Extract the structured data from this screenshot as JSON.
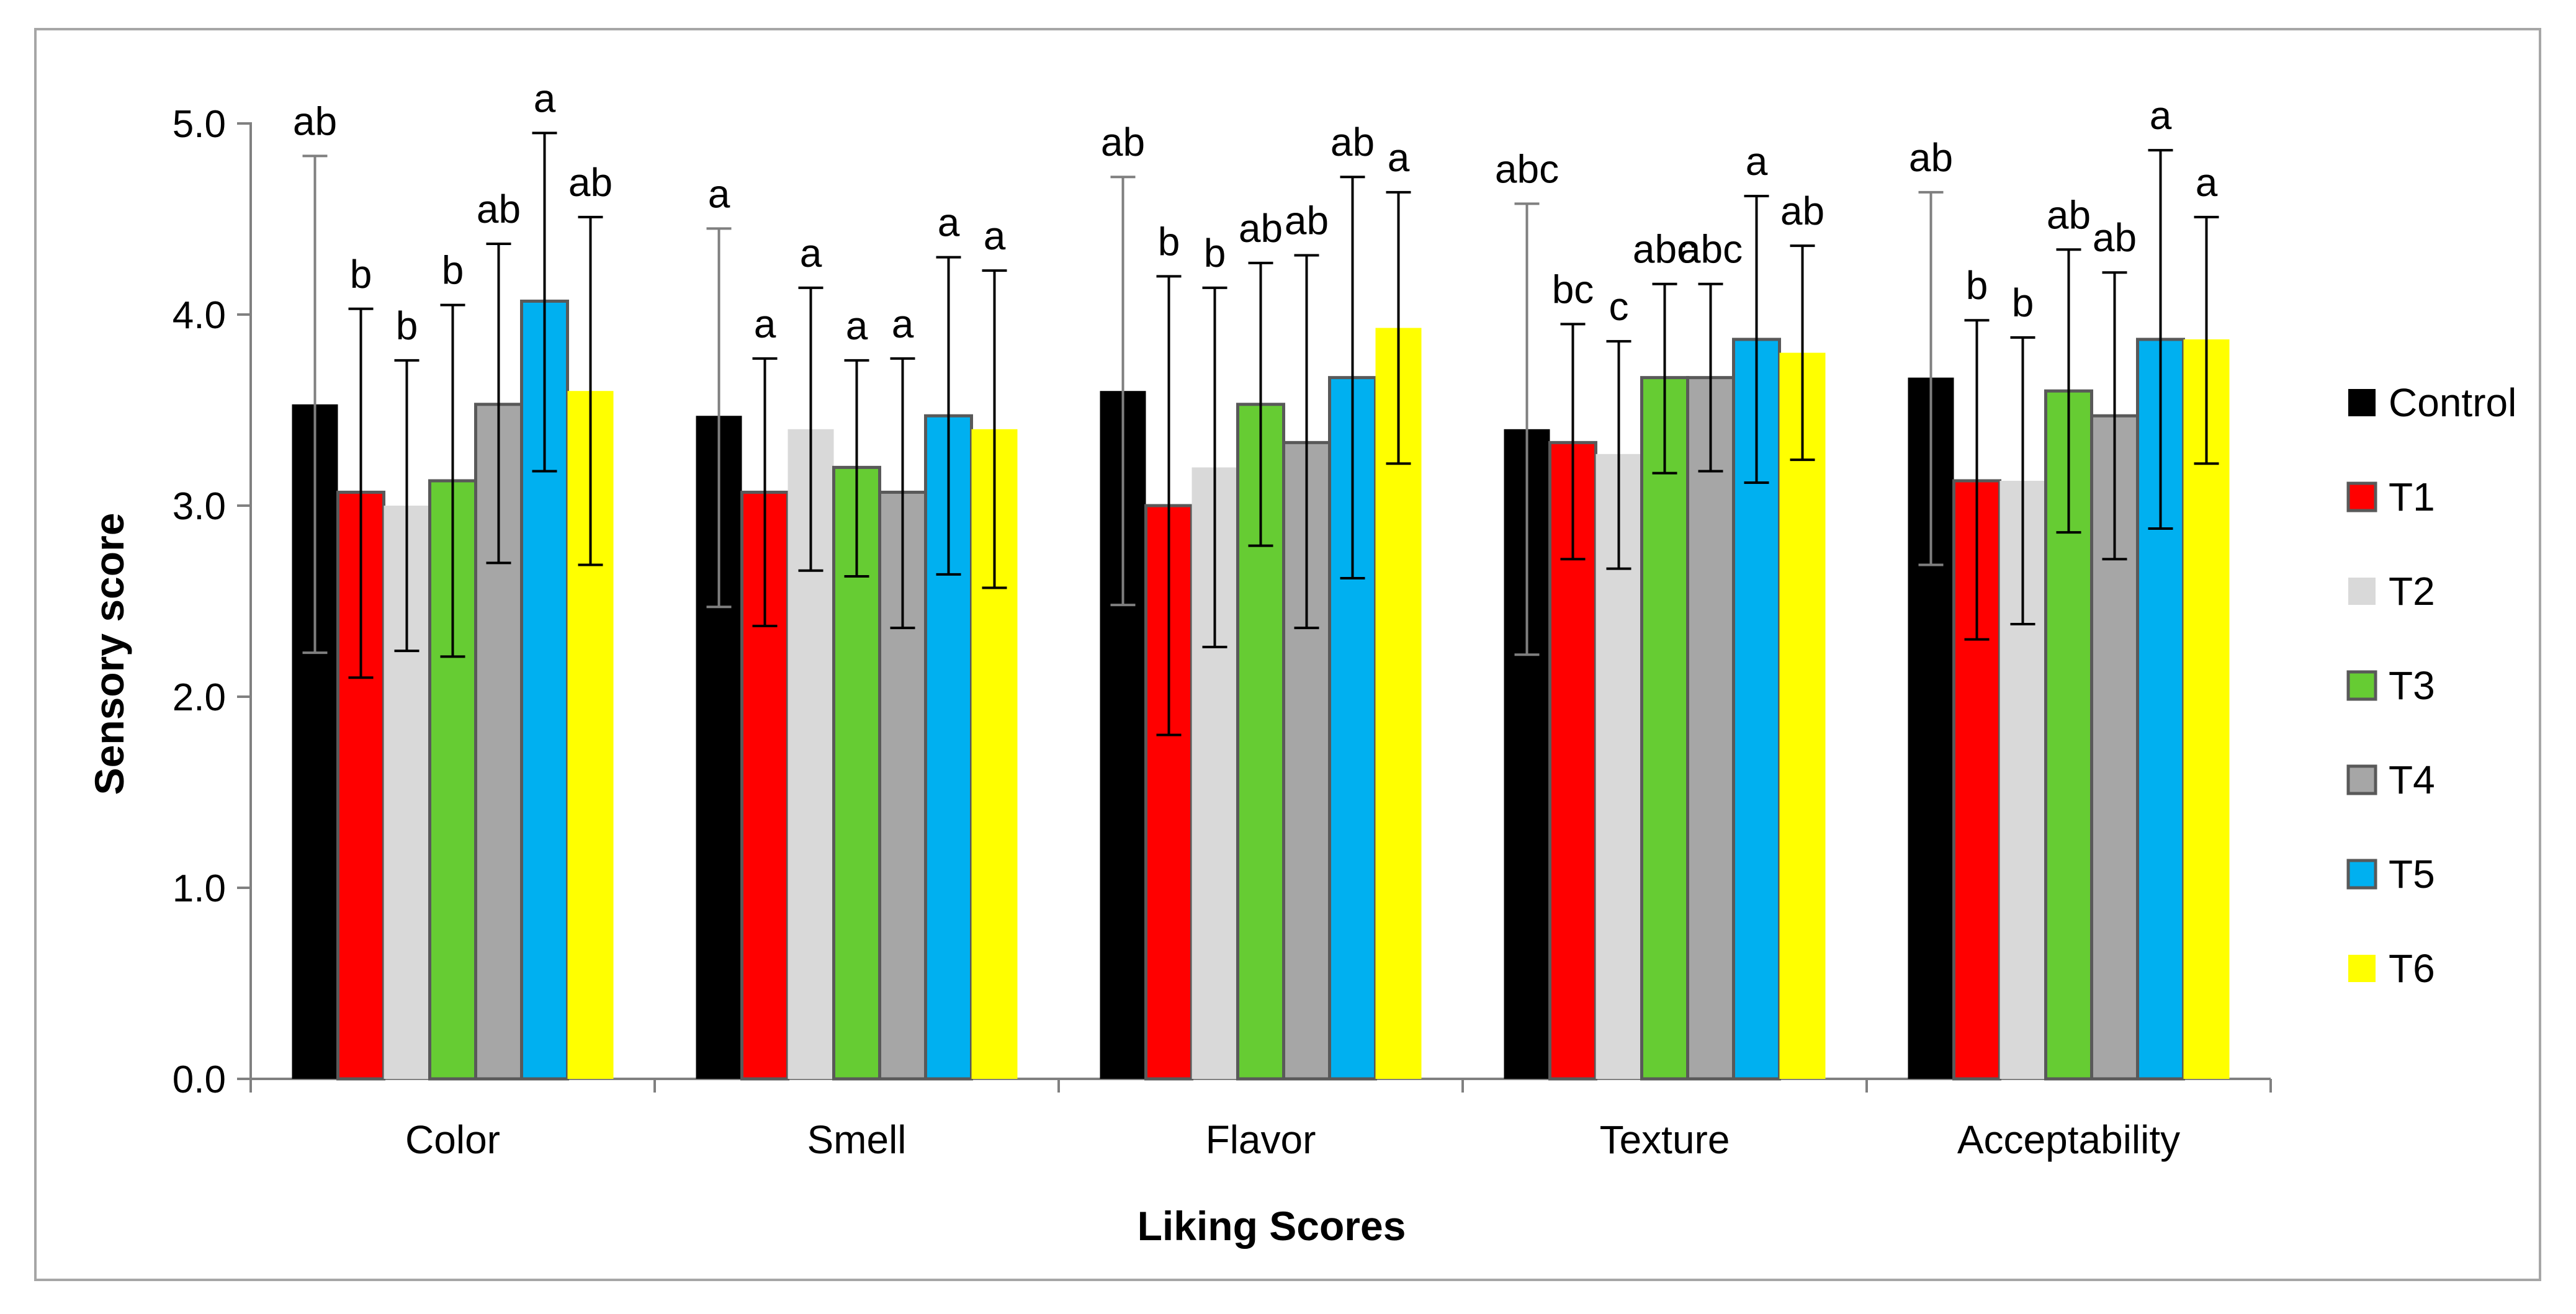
{
  "chart_data": {
    "type": "bar",
    "title": "",
    "xlabel": "Liking Scores",
    "ylabel": "Sensory score",
    "ylim": [
      0,
      5
    ],
    "yticks": [
      "0.0",
      "1.0",
      "2.0",
      "3.0",
      "4.0",
      "5.0"
    ],
    "grid": false,
    "legend_position": "right",
    "categories": [
      "Color",
      "Smell",
      "Flavor",
      "Texture",
      "Acceptability"
    ],
    "series": [
      {
        "name": "Control",
        "color": "#000000",
        "values": [
          3.53,
          3.47,
          3.6,
          3.4,
          3.67
        ],
        "err_low": [
          2.23,
          2.47,
          2.48,
          2.22,
          2.69
        ],
        "err_high": [
          4.83,
          4.45,
          4.72,
          4.58,
          4.64
        ],
        "letters": [
          "ab",
          "a",
          "ab",
          "abc",
          "ab"
        ]
      },
      {
        "name": "T1",
        "color": "#ff0000",
        "values": [
          3.07,
          3.07,
          3.0,
          3.33,
          3.13
        ],
        "err_low": [
          2.1,
          2.37,
          1.8,
          2.72,
          2.3
        ],
        "err_high": [
          4.03,
          3.77,
          4.2,
          3.95,
          3.97
        ],
        "letters": [
          "b",
          "a",
          "b",
          "bc",
          "b"
        ]
      },
      {
        "name": "T2",
        "color": "#d9d9d9",
        "values": [
          3.0,
          3.4,
          3.2,
          3.27,
          3.13
        ],
        "err_low": [
          2.24,
          2.66,
          2.26,
          2.67,
          2.38
        ],
        "err_high": [
          3.76,
          4.14,
          4.14,
          3.86,
          3.88
        ],
        "letters": [
          "b",
          "a",
          "b",
          "c",
          "b"
        ]
      },
      {
        "name": "T3",
        "color": "#66cc33",
        "values": [
          3.13,
          3.2,
          3.53,
          3.67,
          3.6
        ],
        "err_low": [
          2.21,
          2.63,
          2.79,
          3.17,
          2.86
        ],
        "err_high": [
          4.05,
          3.76,
          4.27,
          4.16,
          4.34
        ],
        "letters": [
          "b",
          "a",
          "ab",
          "abc",
          "ab"
        ]
      },
      {
        "name": "T4",
        "color": "#a6a6a6",
        "values": [
          3.53,
          3.07,
          3.33,
          3.67,
          3.47
        ],
        "err_low": [
          2.7,
          2.36,
          2.36,
          3.18,
          2.72
        ],
        "err_high": [
          4.37,
          3.77,
          4.31,
          4.16,
          4.22
        ],
        "letters": [
          "ab",
          "a",
          "ab",
          "abc",
          "ab"
        ]
      },
      {
        "name": "T5",
        "color": "#00b0f0",
        "values": [
          4.07,
          3.47,
          3.67,
          3.87,
          3.87
        ],
        "err_low": [
          3.18,
          2.64,
          2.62,
          3.12,
          2.88
        ],
        "err_high": [
          4.95,
          4.3,
          4.72,
          4.62,
          4.86
        ],
        "letters": [
          "a",
          "a",
          "ab",
          "a",
          "a"
        ]
      },
      {
        "name": "T6",
        "color": "#ffff00",
        "values": [
          3.6,
          3.4,
          3.93,
          3.8,
          3.87
        ],
        "err_low": [
          2.69,
          2.57,
          3.22,
          3.24,
          3.22
        ],
        "err_high": [
          4.51,
          4.23,
          4.64,
          4.36,
          4.51
        ],
        "letters": [
          "ab",
          "a",
          "a",
          "ab",
          "a"
        ]
      }
    ]
  }
}
